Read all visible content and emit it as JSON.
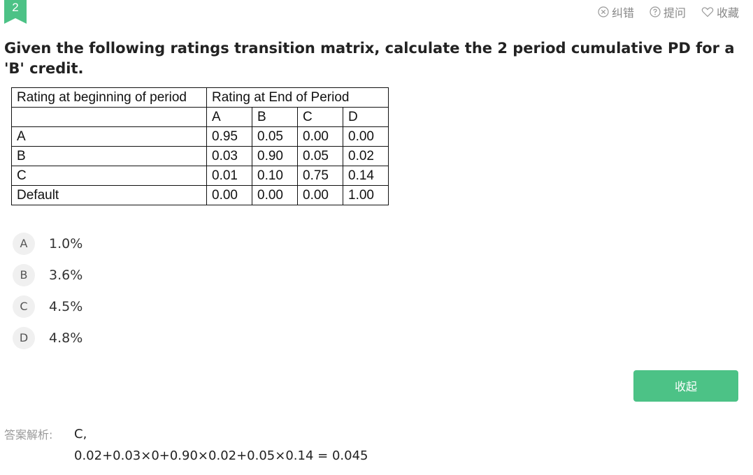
{
  "question": {
    "number": "2",
    "text": "Given the following ratings transition matrix, calculate the 2 period cumulative PD for a 'B' credit."
  },
  "actions": [
    {
      "label": "纠错",
      "icon": "x-circle-icon"
    },
    {
      "label": "提问",
      "icon": "question-circle-icon"
    },
    {
      "label": "收藏",
      "icon": "heart-icon"
    }
  ],
  "matrix": {
    "header_left": "Rating at beginning of period",
    "header_right": "Rating at End of Period",
    "columns": [
      "A",
      "B",
      "C",
      "D"
    ],
    "rows": [
      {
        "label": "A",
        "values": [
          "0.95",
          "0.05",
          "0.00",
          "0.00"
        ]
      },
      {
        "label": "B",
        "values": [
          "0.03",
          "0.90",
          "0.05",
          "0.02"
        ]
      },
      {
        "label": "C",
        "values": [
          "0.01",
          "0.10",
          "0.75",
          "0.14"
        ]
      },
      {
        "label": "Default",
        "values": [
          "0.00",
          "0.00",
          "0.00",
          "1.00"
        ]
      }
    ]
  },
  "options": [
    {
      "letter": "A",
      "text": "1.0%"
    },
    {
      "letter": "B",
      "text": "3.6%"
    },
    {
      "letter": "C",
      "text": "4.5%"
    },
    {
      "letter": "D",
      "text": "4.8%"
    }
  ],
  "collapse_button": "收起",
  "analysis": {
    "label": "答案解析:",
    "answer": "C,",
    "calculation": "0.02+0.03×0+0.90×0.02+0.05×0.14 = 0.045"
  },
  "colors": {
    "accent_green": "#4cc286",
    "muted_gray": "#888888"
  }
}
